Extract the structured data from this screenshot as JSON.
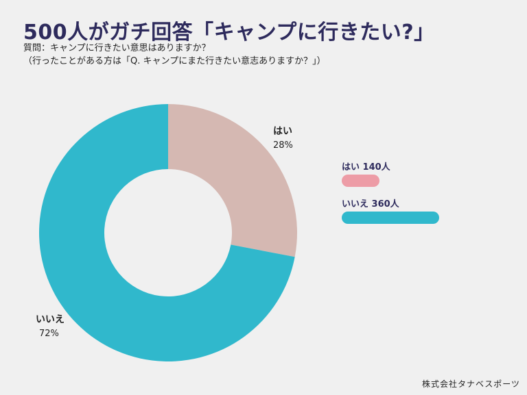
{
  "title": "500人がガチ回答「キャンプに行きたい?」",
  "question": {
    "line1": "質問：キャンプに行きたい意思はありますか？",
    "line2": "（行ったことがある方は「Q. キャンプにまた行きたい意志ありますか？」）"
  },
  "chart_data": {
    "type": "pie",
    "style": "donut",
    "slices": [
      {
        "label": "はい",
        "percent": 28,
        "percent_label": "28%",
        "count": 140,
        "color": "#d5b8b2",
        "legend_label": "はい 140人",
        "legend_color": "#ed9ca6"
      },
      {
        "label": "いいえ",
        "percent": 72,
        "percent_label": "72%",
        "count": 360,
        "color": "#30b8cc",
        "legend_label": "いいえ 360人",
        "legend_color": "#30b8cc"
      }
    ],
    "legend_placement": "right"
  },
  "footer": "株式会社タナベスポーツ"
}
